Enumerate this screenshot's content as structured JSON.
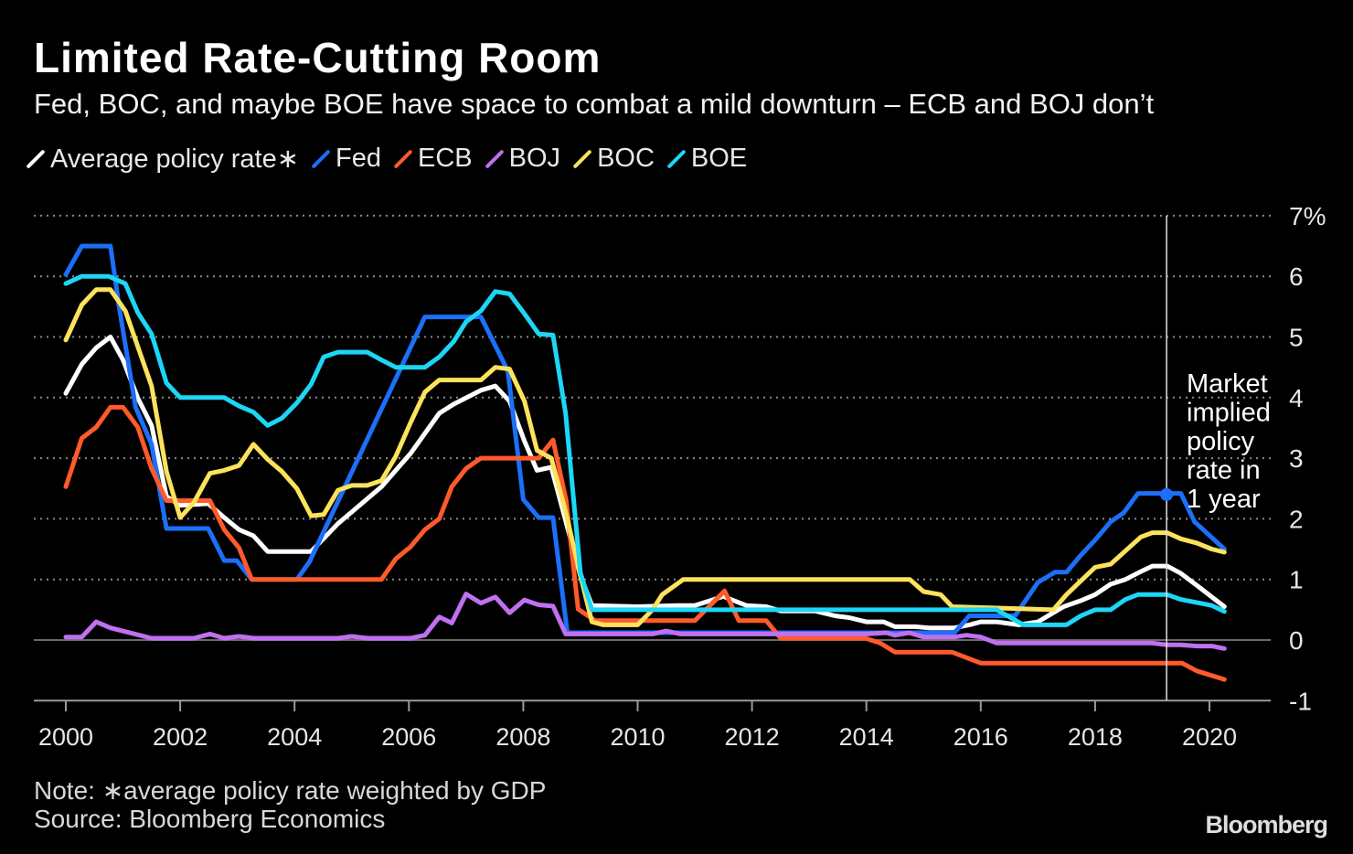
{
  "title": "Limited Rate-Cutting Room",
  "subtitle": "Fed, BOC, and maybe BOE have space to combat a mild downturn – ECB and BOJ don’t",
  "note": "Note: ∗average policy rate weighted by GDP",
  "source": "Source: Bloomberg Economics",
  "logo": "Bloomberg",
  "chart_data": {
    "type": "line",
    "xlabel": "",
    "ylabel": "",
    "xlim": [
      2000,
      2020.3
    ],
    "ylim": [
      -1,
      7
    ],
    "x_ticks": [
      "2000",
      "2002",
      "2004",
      "2006",
      "2008",
      "2010",
      "2012",
      "2014",
      "2016",
      "2018",
      "2020"
    ],
    "y_ticks": [
      "7%",
      "6",
      "5",
      "4",
      "3",
      "2",
      "1",
      "0",
      "-1"
    ],
    "grid": "horizontal dotted",
    "legend": "top",
    "annotation": {
      "text_lines": [
        "Market",
        "implied",
        "policy",
        "rate in",
        "1 year"
      ],
      "x": 2019.25,
      "marker_value": 2.4,
      "marker_series": "Fed"
    },
    "series": [
      {
        "name": "Average policy rate∗",
        "color": "#ffffff",
        "points": [
          [
            2000,
            4.07
          ],
          [
            2000.28,
            4.55
          ],
          [
            2000.53,
            4.82
          ],
          [
            2000.78,
            5.0
          ],
          [
            2001.0,
            4.62
          ],
          [
            2001.26,
            3.99
          ],
          [
            2001.5,
            3.54
          ],
          [
            2001.76,
            2.37
          ],
          [
            2002.0,
            2.22
          ],
          [
            2002.49,
            2.25
          ],
          [
            2002.77,
            2.02
          ],
          [
            2003.03,
            1.82
          ],
          [
            2003.28,
            1.72
          ],
          [
            2003.53,
            1.46
          ],
          [
            2004.29,
            1.46
          ],
          [
            2004.76,
            1.92
          ],
          [
            2005.52,
            2.53
          ],
          [
            2006.03,
            3.08
          ],
          [
            2006.53,
            3.74
          ],
          [
            2006.78,
            3.89
          ],
          [
            2007.26,
            4.12
          ],
          [
            2007.51,
            4.19
          ],
          [
            2007.76,
            3.94
          ],
          [
            2008.02,
            3.28
          ],
          [
            2008.24,
            2.8
          ],
          [
            2008.49,
            2.85
          ],
          [
            2008.74,
            1.97
          ],
          [
            2009.0,
            1.06
          ],
          [
            2009.2,
            0.57
          ],
          [
            2010.0,
            0.55
          ],
          [
            2010.7,
            0.57
          ],
          [
            2011.0,
            0.57
          ],
          [
            2011.5,
            0.72
          ],
          [
            2011.9,
            0.57
          ],
          [
            2012.25,
            0.55
          ],
          [
            2012.5,
            0.48
          ],
          [
            2013.1,
            0.48
          ],
          [
            2013.45,
            0.4
          ],
          [
            2013.7,
            0.37
          ],
          [
            2014.0,
            0.3
          ],
          [
            2014.3,
            0.3
          ],
          [
            2014.5,
            0.22
          ],
          [
            2014.85,
            0.22
          ],
          [
            2015.1,
            0.2
          ],
          [
            2015.54,
            0.2
          ],
          [
            2015.8,
            0.25
          ],
          [
            2016.0,
            0.3
          ],
          [
            2016.28,
            0.3
          ],
          [
            2016.67,
            0.25
          ],
          [
            2017.0,
            0.3
          ],
          [
            2017.45,
            0.55
          ],
          [
            2017.75,
            0.65
          ],
          [
            2018.0,
            0.75
          ],
          [
            2018.27,
            0.92
          ],
          [
            2018.53,
            1.0
          ],
          [
            2018.8,
            1.13
          ],
          [
            2019.0,
            1.22
          ],
          [
            2019.26,
            1.22
          ],
          [
            2019.5,
            1.1
          ],
          [
            2019.78,
            0.9
          ],
          [
            2020.26,
            0.55
          ]
        ]
      },
      {
        "name": "Fed",
        "color": "#1c6ff8",
        "points": [
          [
            2000,
            6.03
          ],
          [
            2000.28,
            6.5
          ],
          [
            2000.78,
            6.5
          ],
          [
            2000.94,
            5.45
          ],
          [
            2001.22,
            3.84
          ],
          [
            2001.5,
            3.23
          ],
          [
            2001.76,
            1.84
          ],
          [
            2002.49,
            1.84
          ],
          [
            2002.77,
            1.31
          ],
          [
            2002.99,
            1.31
          ],
          [
            2003.25,
            1.0
          ],
          [
            2004.04,
            1.0
          ],
          [
            2004.26,
            1.29
          ],
          [
            2006.28,
            5.33
          ],
          [
            2007.26,
            5.33
          ],
          [
            2007.73,
            4.44
          ],
          [
            2008.0,
            2.32
          ],
          [
            2008.27,
            2.02
          ],
          [
            2008.52,
            2.02
          ],
          [
            2008.77,
            0.12
          ],
          [
            2015.54,
            0.12
          ],
          [
            2015.8,
            0.4
          ],
          [
            2016.6,
            0.4
          ],
          [
            2017.0,
            0.95
          ],
          [
            2017.3,
            1.12
          ],
          [
            2017.5,
            1.12
          ],
          [
            2017.75,
            1.4
          ],
          [
            2018.0,
            1.65
          ],
          [
            2018.27,
            1.95
          ],
          [
            2018.5,
            2.1
          ],
          [
            2018.75,
            2.42
          ],
          [
            2019.5,
            2.42
          ],
          [
            2019.74,
            1.95
          ],
          [
            2020.26,
            1.5
          ]
        ]
      },
      {
        "name": "ECB",
        "color": "#ff5a2b",
        "points": [
          [
            2000,
            2.53
          ],
          [
            2000.28,
            3.33
          ],
          [
            2000.53,
            3.51
          ],
          [
            2000.78,
            3.84
          ],
          [
            2001.0,
            3.84
          ],
          [
            2001.26,
            3.51
          ],
          [
            2001.5,
            2.83
          ],
          [
            2001.76,
            2.3
          ],
          [
            2002.52,
            2.3
          ],
          [
            2002.77,
            1.82
          ],
          [
            2003.03,
            1.52
          ],
          [
            2003.25,
            1.0
          ],
          [
            2005.52,
            1.0
          ],
          [
            2005.77,
            1.34
          ],
          [
            2006.03,
            1.54
          ],
          [
            2006.28,
            1.82
          ],
          [
            2006.53,
            2.0
          ],
          [
            2006.75,
            2.53
          ],
          [
            2007.0,
            2.83
          ],
          [
            2007.26,
            3.0
          ],
          [
            2008.27,
            3.0
          ],
          [
            2008.52,
            3.3
          ],
          [
            2008.75,
            2.3
          ],
          [
            2008.96,
            0.51
          ],
          [
            2009.26,
            0.32
          ],
          [
            2011.0,
            0.32
          ],
          [
            2011.52,
            0.81
          ],
          [
            2011.77,
            0.32
          ],
          [
            2012.25,
            0.32
          ],
          [
            2012.5,
            0.03
          ],
          [
            2013.98,
            0.03
          ],
          [
            2014.24,
            -0.05
          ],
          [
            2014.5,
            -0.2
          ],
          [
            2015.5,
            -0.2
          ],
          [
            2016.0,
            -0.38
          ],
          [
            2019.52,
            -0.38
          ],
          [
            2019.78,
            -0.51
          ],
          [
            2020.26,
            -0.65
          ]
        ]
      },
      {
        "name": "BOJ",
        "color": "#c070f0",
        "points": [
          [
            2000,
            0.05
          ],
          [
            2000.28,
            0.05
          ],
          [
            2000.53,
            0.3
          ],
          [
            2000.78,
            0.2
          ],
          [
            2001.5,
            0.03
          ],
          [
            2002.24,
            0.03
          ],
          [
            2002.52,
            0.1
          ],
          [
            2002.77,
            0.03
          ],
          [
            2003.03,
            0.06
          ],
          [
            2003.28,
            0.03
          ],
          [
            2004.76,
            0.03
          ],
          [
            2005.0,
            0.06
          ],
          [
            2005.27,
            0.03
          ],
          [
            2006.03,
            0.03
          ],
          [
            2006.28,
            0.08
          ],
          [
            2006.53,
            0.38
          ],
          [
            2006.75,
            0.28
          ],
          [
            2007.0,
            0.76
          ],
          [
            2007.26,
            0.61
          ],
          [
            2007.51,
            0.71
          ],
          [
            2007.76,
            0.45
          ],
          [
            2008.02,
            0.66
          ],
          [
            2008.27,
            0.58
          ],
          [
            2008.52,
            0.56
          ],
          [
            2008.74,
            0.1
          ],
          [
            2010.26,
            0.1
          ],
          [
            2010.5,
            0.15
          ],
          [
            2010.75,
            0.1
          ],
          [
            2014.0,
            0.1
          ],
          [
            2014.35,
            0.12
          ],
          [
            2014.5,
            0.08
          ],
          [
            2014.75,
            0.12
          ],
          [
            2015.0,
            0.05
          ],
          [
            2015.54,
            0.05
          ],
          [
            2015.75,
            0.08
          ],
          [
            2016.0,
            0.05
          ],
          [
            2016.28,
            -0.05
          ],
          [
            2019.0,
            -0.05
          ],
          [
            2019.26,
            -0.08
          ],
          [
            2019.5,
            -0.08
          ],
          [
            2019.78,
            -0.1
          ],
          [
            2020.04,
            -0.1
          ],
          [
            2020.26,
            -0.14
          ]
        ]
      },
      {
        "name": "BOC",
        "color": "#fde25c",
        "points": [
          [
            2000,
            4.95
          ],
          [
            2000.28,
            5.53
          ],
          [
            2000.53,
            5.78
          ],
          [
            2000.78,
            5.78
          ],
          [
            2001.04,
            5.43
          ],
          [
            2001.5,
            4.19
          ],
          [
            2001.76,
            2.78
          ],
          [
            2002.0,
            2.02
          ],
          [
            2002.24,
            2.27
          ],
          [
            2002.52,
            2.75
          ],
          [
            2002.77,
            2.8
          ],
          [
            2003.03,
            2.88
          ],
          [
            2003.28,
            3.23
          ],
          [
            2003.53,
            2.98
          ],
          [
            2003.78,
            2.78
          ],
          [
            2004.04,
            2.5
          ],
          [
            2004.29,
            2.05
          ],
          [
            2004.51,
            2.07
          ],
          [
            2004.76,
            2.47
          ],
          [
            2005.0,
            2.55
          ],
          [
            2005.27,
            2.55
          ],
          [
            2005.52,
            2.63
          ],
          [
            2005.77,
            3.03
          ],
          [
            2006.03,
            3.59
          ],
          [
            2006.28,
            4.09
          ],
          [
            2006.53,
            4.29
          ],
          [
            2007.26,
            4.29
          ],
          [
            2007.51,
            4.5
          ],
          [
            2007.76,
            4.47
          ],
          [
            2008.02,
            3.94
          ],
          [
            2008.24,
            3.13
          ],
          [
            2008.49,
            3.0
          ],
          [
            2008.74,
            2.12
          ],
          [
            2009.0,
            1.06
          ],
          [
            2009.2,
            0.3
          ],
          [
            2009.4,
            0.25
          ],
          [
            2010.0,
            0.25
          ],
          [
            2010.26,
            0.5
          ],
          [
            2010.43,
            0.75
          ],
          [
            2010.8,
            1.0
          ],
          [
            2014.76,
            1.0
          ],
          [
            2015.0,
            0.8
          ],
          [
            2015.3,
            0.75
          ],
          [
            2015.5,
            0.55
          ],
          [
            2017.27,
            0.5
          ],
          [
            2017.5,
            0.75
          ],
          [
            2018.0,
            1.2
          ],
          [
            2018.27,
            1.25
          ],
          [
            2018.8,
            1.7
          ],
          [
            2019.0,
            1.77
          ],
          [
            2019.26,
            1.77
          ],
          [
            2019.5,
            1.67
          ],
          [
            2019.78,
            1.6
          ],
          [
            2020.04,
            1.5
          ],
          [
            2020.26,
            1.45
          ]
        ]
      },
      {
        "name": "BOE",
        "color": "#1dd6f5",
        "points": [
          [
            2000,
            5.88
          ],
          [
            2000.28,
            6.0
          ],
          [
            2000.75,
            6.0
          ],
          [
            2001.04,
            5.88
          ],
          [
            2001.26,
            5.4
          ],
          [
            2001.5,
            5.05
          ],
          [
            2001.76,
            4.24
          ],
          [
            2002.0,
            4.0
          ],
          [
            2002.77,
            4.0
          ],
          [
            2003.03,
            3.86
          ],
          [
            2003.28,
            3.76
          ],
          [
            2003.53,
            3.54
          ],
          [
            2003.78,
            3.66
          ],
          [
            2004.04,
            3.91
          ],
          [
            2004.29,
            4.22
          ],
          [
            2004.51,
            4.67
          ],
          [
            2004.76,
            4.75
          ],
          [
            2005.27,
            4.75
          ],
          [
            2005.52,
            4.62
          ],
          [
            2005.77,
            4.5
          ],
          [
            2006.28,
            4.5
          ],
          [
            2006.53,
            4.67
          ],
          [
            2006.78,
            4.92
          ],
          [
            2007.0,
            5.25
          ],
          [
            2007.26,
            5.43
          ],
          [
            2007.51,
            5.75
          ],
          [
            2007.76,
            5.71
          ],
          [
            2008.02,
            5.38
          ],
          [
            2008.27,
            5.05
          ],
          [
            2008.52,
            5.03
          ],
          [
            2008.74,
            3.74
          ],
          [
            2009.0,
            1.11
          ],
          [
            2009.2,
            0.5
          ],
          [
            2016.28,
            0.5
          ],
          [
            2016.75,
            0.25
          ],
          [
            2017.5,
            0.25
          ],
          [
            2017.75,
            0.4
          ],
          [
            2018.0,
            0.5
          ],
          [
            2018.27,
            0.5
          ],
          [
            2018.53,
            0.67
          ],
          [
            2018.75,
            0.75
          ],
          [
            2019.26,
            0.75
          ],
          [
            2019.5,
            0.67
          ],
          [
            2020.04,
            0.57
          ],
          [
            2020.26,
            0.47
          ]
        ]
      }
    ]
  }
}
